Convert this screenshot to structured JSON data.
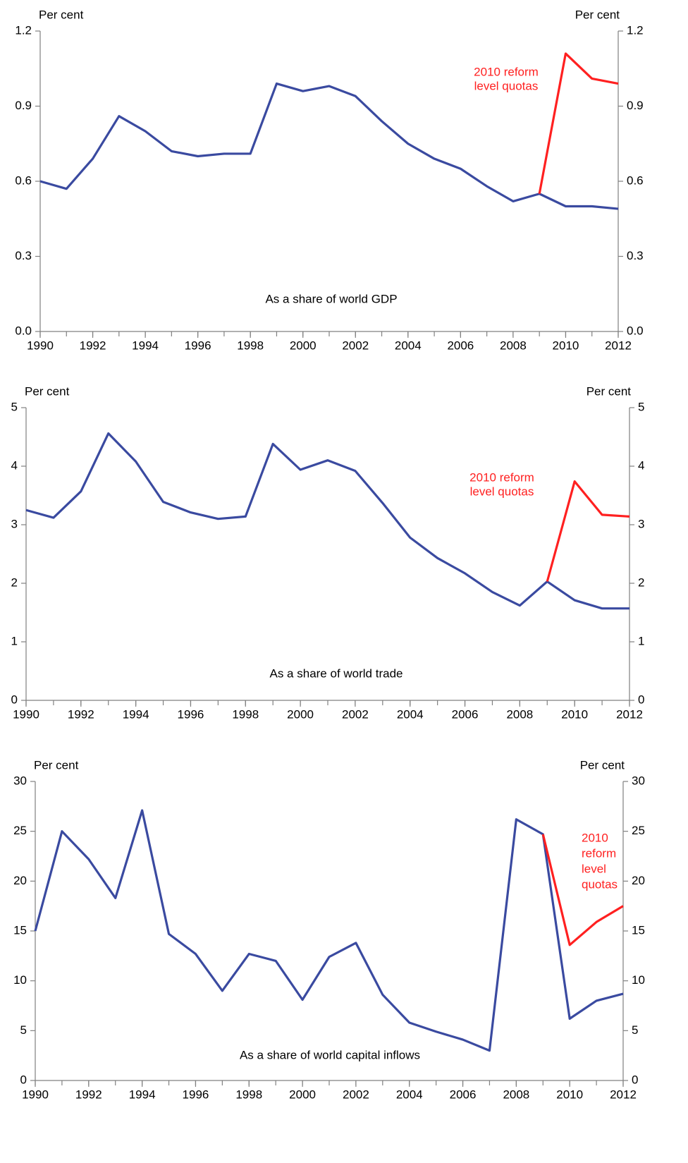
{
  "chart_data": [
    {
      "type": "line",
      "y_label": "Per cent",
      "y2_label": "Per cent",
      "annotations": [
        {
          "lines": [
            "2010 reform",
            "level quotas"
          ],
          "color": "#ff2020"
        },
        {
          "lines": [
            "As a share of world GDP"
          ],
          "color": "#000000"
        }
      ],
      "x": [
        1990,
        1991,
        1992,
        1993,
        1994,
        1995,
        1996,
        1997,
        1998,
        1999,
        2000,
        2001,
        2002,
        2003,
        2004,
        2005,
        2006,
        2007,
        2008,
        2009,
        2010,
        2011,
        2012
      ],
      "xlim": [
        1990,
        2012
      ],
      "xticks": [
        1990,
        1992,
        1994,
        1996,
        1998,
        2000,
        2002,
        2004,
        2006,
        2008,
        2010,
        2012
      ],
      "ylim": [
        0,
        1.2
      ],
      "yticks": [
        {
          "value": 0,
          "label": "0.0"
        },
        0.3,
        0.6,
        0.9,
        1.2
      ],
      "y2lim": [
        0,
        1.2
      ],
      "y2ticks": [
        {
          "value": 0,
          "label": "0.0"
        },
        0.3,
        0.6,
        0.9,
        1.2
      ],
      "series": [
        {
          "color": "#3a4aa0",
          "values": [
            0.6,
            0.57,
            0.69,
            0.86,
            0.8,
            0.72,
            0.7,
            0.71,
            0.71,
            0.99,
            0.96,
            0.98,
            0.94,
            0.84,
            0.75,
            0.69,
            0.65,
            0.58,
            0.52,
            0.55,
            0.5,
            0.5,
            0.49
          ]
        },
        {
          "color": "#ff2020",
          "values": [
            null,
            null,
            null,
            null,
            null,
            null,
            null,
            null,
            null,
            null,
            null,
            null,
            null,
            null,
            null,
            null,
            null,
            null,
            null,
            0.55,
            1.11,
            1.01,
            0.99
          ]
        }
      ]
    },
    {
      "type": "line",
      "y_label": "Per cent",
      "y2_label": "Per cent",
      "annotations": [
        {
          "lines": [
            "2010 reform",
            "level quotas"
          ],
          "color": "#ff2020"
        },
        {
          "lines": [
            "As a share of world trade"
          ],
          "color": "#000000"
        }
      ],
      "x": [
        1990,
        1991,
        1992,
        1993,
        1994,
        1995,
        1996,
        1997,
        1998,
        1999,
        2000,
        2001,
        2002,
        2003,
        2004,
        2005,
        2006,
        2007,
        2008,
        2009,
        2010,
        2011,
        2012
      ],
      "xlim": [
        1990,
        2012
      ],
      "xticks": [
        1990,
        1992,
        1994,
        1996,
        1998,
        2000,
        2002,
        2004,
        2006,
        2008,
        2010,
        2012
      ],
      "ylim": [
        0,
        5
      ],
      "yticks": [
        0,
        1,
        2,
        3,
        4,
        5
      ],
      "y2lim": [
        0,
        5
      ],
      "y2ticks": [
        0,
        1,
        2,
        3,
        4,
        5
      ],
      "series": [
        {
          "color": "#3a4aa0",
          "values": [
            3.25,
            3.12,
            3.57,
            4.56,
            4.08,
            3.39,
            3.21,
            3.1,
            3.14,
            4.38,
            3.94,
            4.1,
            3.92,
            3.37,
            2.78,
            2.43,
            2.17,
            1.85,
            1.62,
            2.03,
            1.71,
            1.57,
            1.57
          ]
        },
        {
          "color": "#ff2020",
          "values": [
            null,
            null,
            null,
            null,
            null,
            null,
            null,
            null,
            null,
            null,
            null,
            null,
            null,
            null,
            null,
            null,
            null,
            null,
            null,
            2.03,
            3.74,
            3.17,
            3.14
          ]
        }
      ]
    },
    {
      "type": "line",
      "y_label": "Per cent",
      "y2_label": "Per cent",
      "annotations": [
        {
          "lines": [
            "2010",
            "reform",
            "level",
            "quotas"
          ],
          "color": "#ff2020"
        },
        {
          "lines": [
            "As a share of world capital inflows"
          ],
          "color": "#000000"
        }
      ],
      "x": [
        1990,
        1991,
        1992,
        1993,
        1994,
        1995,
        1996,
        1997,
        1998,
        1999,
        2000,
        2001,
        2002,
        2003,
        2004,
        2005,
        2006,
        2007,
        2008,
        2009,
        2010,
        2011,
        2012
      ],
      "xlim": [
        1990,
        2012
      ],
      "xticks": [
        1990,
        1992,
        1994,
        1996,
        1998,
        2000,
        2002,
        2004,
        2006,
        2008,
        2010,
        2012
      ],
      "ylim": [
        0,
        30
      ],
      "yticks": [
        0,
        5,
        10,
        15,
        20,
        25,
        30
      ],
      "y2lim": [
        0,
        30
      ],
      "y2ticks": [
        0,
        5,
        10,
        15,
        20,
        25,
        30
      ],
      "series": [
        {
          "color": "#3a4aa0",
          "values": [
            15,
            25,
            22.2,
            18.3,
            27.1,
            14.7,
            12.7,
            9.0,
            12.7,
            12.0,
            8.1,
            12.4,
            13.8,
            8.6,
            5.8,
            4.9,
            4.1,
            3.0,
            26.2,
            24.7,
            6.2,
            8.0,
            8.7
          ]
        },
        {
          "color": "#ff2020",
          "values": [
            null,
            null,
            null,
            null,
            null,
            null,
            null,
            null,
            null,
            null,
            null,
            null,
            null,
            null,
            null,
            null,
            null,
            null,
            null,
            24.7,
            13.6,
            15.9,
            17.5
          ]
        }
      ]
    }
  ]
}
